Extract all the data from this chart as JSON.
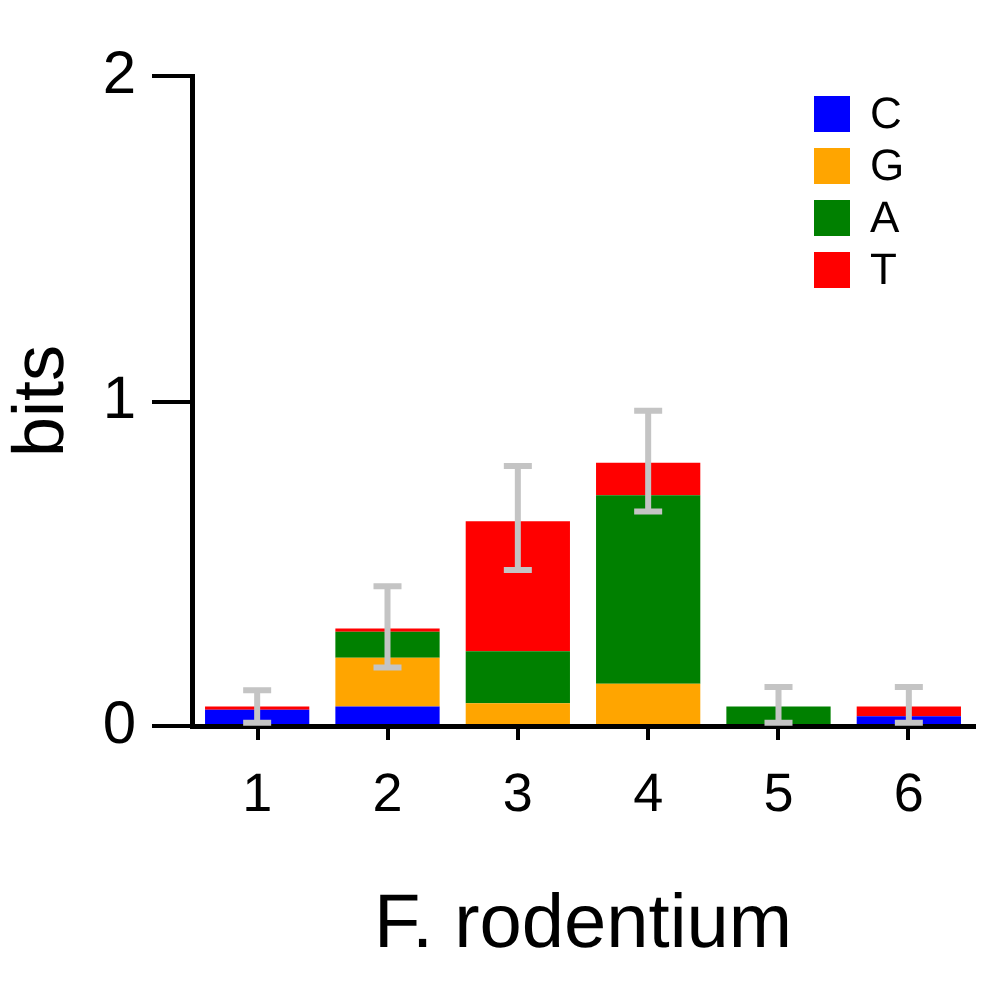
{
  "chart_data": {
    "type": "bar",
    "xlabel": "F. rodentium",
    "ylabel": "bits",
    "categories": [
      "1",
      "2",
      "3",
      "4",
      "5",
      "6"
    ],
    "stacked": true,
    "legend": "top right",
    "series": [
      {
        "name": "C",
        "color": "#0000ff",
        "values": [
          0.05,
          0.06,
          0,
          0,
          0,
          0.03
        ]
      },
      {
        "name": "G",
        "color": "#ffa500",
        "values": [
          0,
          0.15,
          0.07,
          0.13,
          0,
          0
        ]
      },
      {
        "name": "A",
        "color": "#008000",
        "values": [
          0,
          0.08,
          0.16,
          0.58,
          0.06,
          0
        ]
      },
      {
        "name": "T",
        "color": "#ff0000",
        "values": [
          0.01,
          0.01,
          0.4,
          0.1,
          0,
          0.03
        ],
        "errors": [
          [
            0.01,
            0.11
          ],
          [
            0.18,
            0.43
          ],
          [
            0.48,
            0.8
          ],
          [
            0.66,
            0.97
          ],
          [
            0.01,
            0.12
          ],
          [
            0.01,
            0.12
          ]
        ]
      }
    ],
    "ylim": [
      0,
      2
    ],
    "yticks": [
      0,
      1,
      2
    ]
  }
}
